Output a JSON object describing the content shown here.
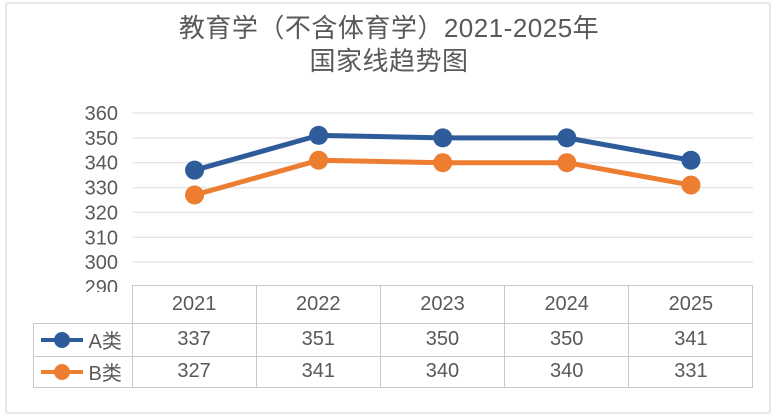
{
  "title_lines": {
    "line1": "教育学（不含体育学）2021-2025年",
    "line2": "国家线趋势图"
  },
  "chart_data": {
    "type": "line",
    "title": "教育学（不含体育学）2021-2025年国家线趋势图",
    "categories": [
      "2021",
      "2022",
      "2023",
      "2024",
      "2025"
    ],
    "series": [
      {
        "name": "A类",
        "values": [
          337,
          351,
          350,
          350,
          341
        ],
        "color": "#2e5c9a"
      },
      {
        "name": "B类",
        "values": [
          327,
          341,
          340,
          340,
          331
        ],
        "color": "#ed7d31"
      }
    ],
    "ylim": [
      290,
      360
    ],
    "y_ticks": [
      360,
      350,
      340,
      330,
      320,
      310,
      300,
      290
    ],
    "grid": true,
    "legend_position": "table-left",
    "marker": "circle",
    "xlabel": "",
    "ylabel": ""
  },
  "colors": {
    "text": "#595959",
    "gridline": "#e7e7e7",
    "table_border": "#c9c9c9",
    "frame_border": "#e7e7e7",
    "background": "#ffffff"
  }
}
